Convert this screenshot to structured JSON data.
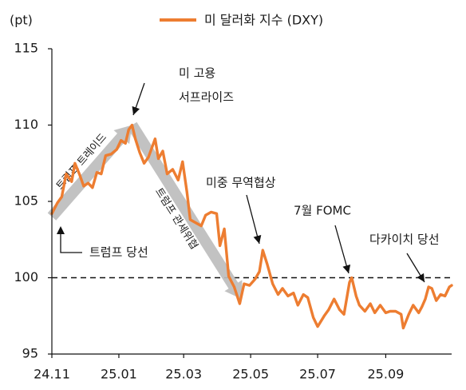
{
  "chart_data": {
    "type": "line",
    "unit_label": "(pt)",
    "legend": {
      "label": "미 달러화 지수 (DXY)",
      "color": "#ED7D31",
      "placement": "top-center"
    },
    "y_ticks": [
      95,
      100,
      105,
      110,
      115
    ],
    "ylim": [
      95,
      115
    ],
    "x_ticks": [
      "24.11",
      "25.01",
      "25.03",
      "25.05",
      "25.07",
      "25.09"
    ],
    "x_tick_dates": [
      "2024-11-01",
      "2025-01-01",
      "2025-03-01",
      "2025-05-01",
      "2025-07-01",
      "2025-09-01"
    ],
    "xlim": [
      "2024-11-01",
      "2025-10-31"
    ],
    "reference_line": {
      "y": 100,
      "style": "dashed"
    },
    "series": [
      {
        "name": "미 달러화 지수 (DXY)",
        "color": "#ED7D31",
        "points": [
          [
            "2024-11-01",
            104.2
          ],
          [
            "2024-11-06",
            104.9
          ],
          [
            "2024-11-10",
            105.3
          ],
          [
            "2024-11-14",
            106.8
          ],
          [
            "2024-11-19",
            106.3
          ],
          [
            "2024-11-22",
            107.5
          ],
          [
            "2024-11-26",
            106.8
          ],
          [
            "2024-11-30",
            106.0
          ],
          [
            "2024-12-04",
            106.2
          ],
          [
            "2024-12-08",
            105.9
          ],
          [
            "2024-12-12",
            106.9
          ],
          [
            "2024-12-16",
            106.8
          ],
          [
            "2024-12-20",
            108.0
          ],
          [
            "2024-12-25",
            108.1
          ],
          [
            "2024-12-30",
            108.4
          ],
          [
            "2025-01-03",
            109.0
          ],
          [
            "2025-01-07",
            108.8
          ],
          [
            "2025-01-10",
            109.7
          ],
          [
            "2025-01-13",
            110.0
          ],
          [
            "2025-01-16",
            109.1
          ],
          [
            "2025-01-20",
            108.2
          ],
          [
            "2025-01-24",
            107.5
          ],
          [
            "2025-01-28",
            107.9
          ],
          [
            "2025-02-03",
            109.1
          ],
          [
            "2025-02-06",
            107.8
          ],
          [
            "2025-02-10",
            108.3
          ],
          [
            "2025-02-14",
            106.8
          ],
          [
            "2025-02-19",
            107.1
          ],
          [
            "2025-02-24",
            106.4
          ],
          [
            "2025-02-28",
            107.6
          ],
          [
            "2025-03-04",
            105.6
          ],
          [
            "2025-03-07",
            103.8
          ],
          [
            "2025-03-12",
            103.6
          ],
          [
            "2025-03-17",
            103.4
          ],
          [
            "2025-03-21",
            104.1
          ],
          [
            "2025-03-26",
            104.3
          ],
          [
            "2025-03-31",
            104.2
          ],
          [
            "2025-04-03",
            102.1
          ],
          [
            "2025-04-07",
            103.2
          ],
          [
            "2025-04-11",
            100.1
          ],
          [
            "2025-04-16",
            99.4
          ],
          [
            "2025-04-21",
            98.3
          ],
          [
            "2025-04-25",
            99.6
          ],
          [
            "2025-04-30",
            99.5
          ],
          [
            "2025-05-05",
            99.9
          ],
          [
            "2025-05-09",
            100.4
          ],
          [
            "2025-05-12",
            101.8
          ],
          [
            "2025-05-16",
            100.9
          ],
          [
            "2025-05-21",
            99.6
          ],
          [
            "2025-05-26",
            98.9
          ],
          [
            "2025-05-30",
            99.3
          ],
          [
            "2025-06-04",
            98.8
          ],
          [
            "2025-06-09",
            99.0
          ],
          [
            "2025-06-13",
            98.2
          ],
          [
            "2025-06-18",
            98.9
          ],
          [
            "2025-06-22",
            98.7
          ],
          [
            "2025-06-27",
            97.4
          ],
          [
            "2025-07-01",
            96.8
          ],
          [
            "2025-07-07",
            97.5
          ],
          [
            "2025-07-11",
            97.9
          ],
          [
            "2025-07-16",
            98.6
          ],
          [
            "2025-07-21",
            97.9
          ],
          [
            "2025-07-25",
            97.6
          ],
          [
            "2025-07-30",
            99.7
          ],
          [
            "2025-08-01",
            100.0
          ],
          [
            "2025-08-05",
            98.8
          ],
          [
            "2025-08-08",
            98.2
          ],
          [
            "2025-08-13",
            97.8
          ],
          [
            "2025-08-18",
            98.3
          ],
          [
            "2025-08-22",
            97.7
          ],
          [
            "2025-08-27",
            98.2
          ],
          [
            "2025-09-01",
            97.7
          ],
          [
            "2025-09-05",
            97.8
          ],
          [
            "2025-09-10",
            97.8
          ],
          [
            "2025-09-15",
            97.6
          ],
          [
            "2025-09-17",
            96.7
          ],
          [
            "2025-09-22",
            97.6
          ],
          [
            "2025-09-26",
            98.2
          ],
          [
            "2025-10-01",
            97.7
          ],
          [
            "2025-10-04",
            98.1
          ],
          [
            "2025-10-07",
            98.6
          ],
          [
            "2025-10-10",
            99.4
          ],
          [
            "2025-10-13",
            99.3
          ],
          [
            "2025-10-17",
            98.5
          ],
          [
            "2025-10-21",
            98.9
          ],
          [
            "2025-10-25",
            98.8
          ],
          [
            "2025-10-29",
            99.4
          ],
          [
            "2025-10-31",
            99.5
          ]
        ]
      }
    ],
    "annotations": [
      {
        "id": "trump-elected",
        "label": "트럼프 당선",
        "date": "2024-11-06",
        "value": 104.3
      },
      {
        "id": "trump-surprise",
        "label_lines": [
          "미 고용",
          "서프라이즈"
        ],
        "date": "2025-01-10",
        "value": 110.0
      },
      {
        "id": "us-china-trade",
        "label": "미중 무역협상",
        "date": "2025-05-12",
        "value": 101.8
      },
      {
        "id": "july-fomc",
        "label": "7월 FOMC",
        "date": "2025-07-30",
        "value": 100.0
      },
      {
        "id": "takaichi-elected",
        "label": "다카이치 당선",
        "date": "2025-10-06",
        "value": 99.4
      }
    ],
    "trend_arrows": [
      {
        "id": "trump-trade",
        "label": "트럼프 트레이드",
        "from": [
          "2024-11-01",
          104.0
        ],
        "to": [
          "2025-01-13",
          110.0
        ]
      },
      {
        "id": "tariff-risk",
        "label": "트럼프 관세위협",
        "from": [
          "2025-01-13",
          110.0
        ],
        "to": [
          "2025-04-23",
          98.6
        ]
      }
    ]
  }
}
